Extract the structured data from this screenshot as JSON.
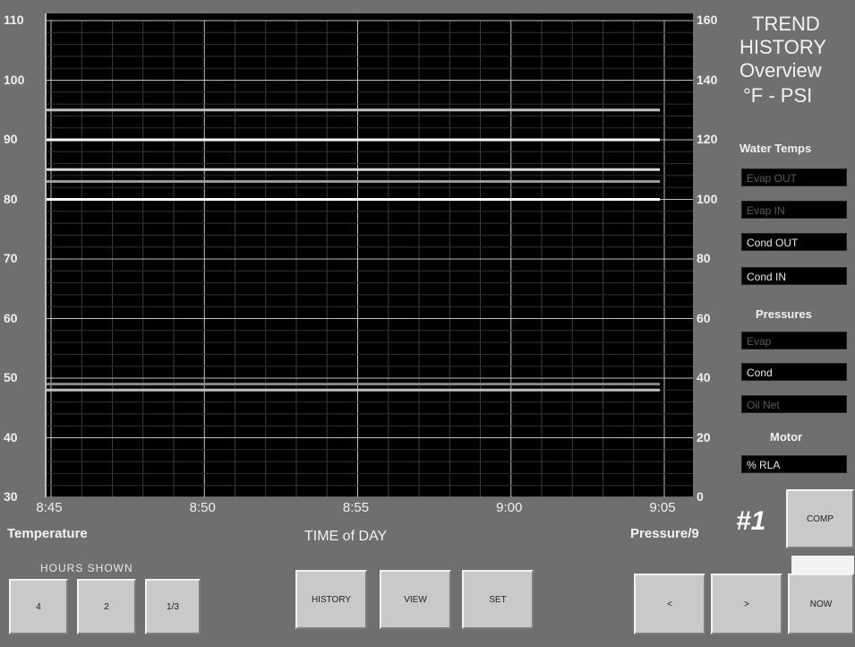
{
  "panel": {
    "title_lines": [
      "TREND",
      "HISTORY",
      "Overview",
      "°F - PSI"
    ],
    "unit_label": "#1"
  },
  "chart_data": {
    "type": "line",
    "xlabel": "TIME of DAY",
    "ylabel_left": "Temperature",
    "ylabel_right": "Pressure/9",
    "x_ticks": [
      "8:45",
      "8:50",
      "8:55",
      "9:00",
      "9:05"
    ],
    "y_left_ticks": [
      "110",
      "100",
      "90",
      "80",
      "70",
      "60",
      "50",
      "40",
      "30"
    ],
    "y_right_ticks": [
      "160",
      "140",
      "120",
      "100",
      "80",
      "60",
      "40",
      "20",
      "0"
    ],
    "y_left_range": [
      30,
      110
    ],
    "y_right_range": [
      0,
      160
    ],
    "grid": true,
    "series": [
      {
        "values": [
          95,
          95
        ],
        "color": "#bfbfbf"
      },
      {
        "values": [
          90,
          90
        ],
        "color": "#ffffff"
      },
      {
        "values": [
          85,
          85
        ],
        "color": "#d8d8d8"
      },
      {
        "values": [
          83,
          83
        ],
        "color": "#9a9a9a"
      },
      {
        "values": [
          80,
          80
        ],
        "color": "#ffffff"
      },
      {
        "values": [
          49,
          49
        ],
        "color": "#8a8a8a"
      },
      {
        "values": [
          48,
          48
        ],
        "color": "#bfbfbf"
      }
    ]
  },
  "water_temps": {
    "heading": "Water Temps",
    "items": [
      {
        "label": "Evap OUT",
        "state": "dim"
      },
      {
        "label": "Evap IN",
        "state": "dim"
      },
      {
        "label": "Cond OUT",
        "state": "lit"
      },
      {
        "label": "Cond IN",
        "state": "lit"
      }
    ]
  },
  "pressures": {
    "heading": "Pressures",
    "items": [
      {
        "label": "Evap",
        "state": "dim"
      },
      {
        "label": "Cond",
        "state": "lit"
      },
      {
        "label": "Oil Net",
        "state": "dim"
      }
    ]
  },
  "motor": {
    "heading": "Motor",
    "items": [
      {
        "label": "% RLA",
        "state": "lit"
      }
    ]
  },
  "controls": {
    "hours_label": "HOURS SHOWN",
    "hour_buttons": [
      "4",
      "2",
      "1/3"
    ],
    "history": "HISTORY",
    "view": "VIEW",
    "set": "SET",
    "prev": "<",
    "next": ">",
    "now": "NOW",
    "comp": "COMP"
  }
}
